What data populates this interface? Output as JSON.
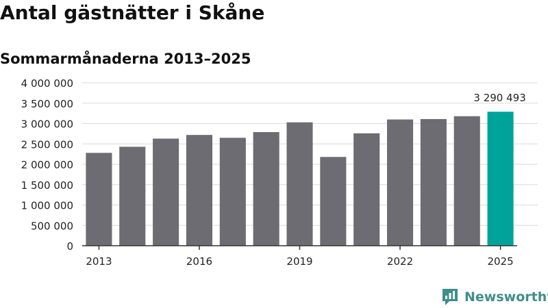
{
  "header": {
    "title": "Antal gästnätter i Skåne",
    "subtitle": "Sommarmånaderna 2013–2025"
  },
  "brand": {
    "name": "Newsworthy",
    "icon": "newsworthy-logo-icon",
    "color": "#3e8e8a"
  },
  "colors": {
    "bar": "#6d6c72",
    "highlight": "#00a39a",
    "grid": "#d9d9d9",
    "axis": "#333333"
  },
  "chart_data": {
    "type": "bar",
    "title": "Antal gästnätter i Skåne",
    "subtitle": "Sommarmånaderna 2013–2025",
    "xlabel": "",
    "ylabel": "",
    "categories": [
      "2013",
      "2014",
      "2015",
      "2016",
      "2017",
      "2018",
      "2019",
      "2020",
      "2021",
      "2022",
      "2023",
      "2024",
      "2025"
    ],
    "x_tick_labels": [
      "2013",
      "2016",
      "2019",
      "2022",
      "2025"
    ],
    "values": [
      2280000,
      2430000,
      2630000,
      2720000,
      2650000,
      2790000,
      3030000,
      2180000,
      2760000,
      3100000,
      3110000,
      3180000,
      3290493
    ],
    "highlight_category": "2025",
    "data_labels": [
      {
        "category": "2025",
        "label": "3 290 493"
      }
    ],
    "ylim": [
      0,
      4000000
    ],
    "y_ticks": [
      0,
      500000,
      1000000,
      1500000,
      2000000,
      2500000,
      3000000,
      3500000,
      4000000
    ],
    "y_tick_labels": [
      "0",
      "500 000",
      "1 000 000",
      "1 500 000",
      "2 000 000",
      "2 500 000",
      "3 000 000",
      "3 500 000",
      "4 000 000"
    ],
    "grid": true,
    "legend": "none"
  }
}
